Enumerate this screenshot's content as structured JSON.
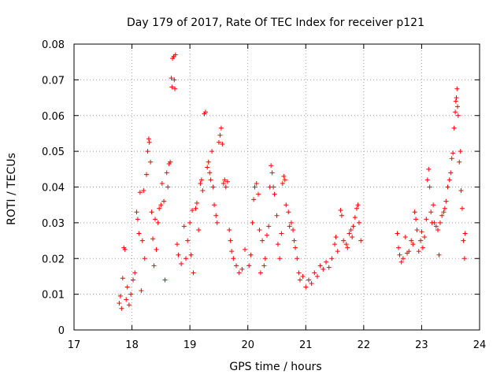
{
  "chart_data": {
    "type": "scatter",
    "title": "Day 179 of 2017, Rate Of TEC Index for receiver p121",
    "xlabel": "GPS time / hours",
    "ylabel": "ROTI / TECUs",
    "xlim": [
      17,
      24
    ],
    "ylim": [
      0,
      0.08
    ],
    "x_ticks": [
      "17",
      "18",
      "19",
      "20",
      "21",
      "22",
      "23",
      "24"
    ],
    "y_ticks": [
      "0",
      "0.01",
      "0.02",
      "0.03",
      "0.04",
      "0.05",
      "0.06",
      "0.07",
      "0.08"
    ],
    "grid": true,
    "marker": "+",
    "color": "#ff0000",
    "series": [
      {
        "points": [
          [
            17.78,
            0.0075
          ],
          [
            17.8,
            0.0095
          ],
          [
            17.82,
            0.006
          ],
          [
            17.84,
            0.0145
          ],
          [
            17.86,
            0.023
          ],
          [
            17.88,
            0.0225
          ],
          [
            17.9,
            0.0085
          ],
          [
            17.92,
            0.012
          ],
          [
            17.95,
            0.007
          ],
          [
            17.98,
            0.01
          ],
          [
            18.02,
            0.014
          ],
          [
            18.05,
            0.016
          ],
          [
            18.08,
            0.033
          ],
          [
            18.1,
            0.031
          ],
          [
            18.12,
            0.027
          ],
          [
            18.14,
            0.0385
          ],
          [
            18.16,
            0.011
          ],
          [
            18.18,
            0.025
          ],
          [
            18.2,
            0.039
          ],
          [
            18.22,
            0.02
          ],
          [
            18.25,
            0.0435
          ],
          [
            18.27,
            0.05
          ],
          [
            18.29,
            0.0535
          ],
          [
            18.3,
            0.0525
          ],
          [
            18.32,
            0.047
          ],
          [
            18.34,
            0.033
          ],
          [
            18.36,
            0.0255
          ],
          [
            18.38,
            0.018
          ],
          [
            18.4,
            0.031
          ],
          [
            18.42,
            0.0225
          ],
          [
            18.45,
            0.03
          ],
          [
            18.47,
            0.034
          ],
          [
            18.5,
            0.035
          ],
          [
            18.52,
            0.041
          ],
          [
            18.55,
            0.036
          ],
          [
            18.57,
            0.014
          ],
          [
            18.6,
            0.044
          ],
          [
            18.62,
            0.04
          ],
          [
            18.64,
            0.0465
          ],
          [
            18.66,
            0.047
          ],
          [
            18.68,
            0.0705
          ],
          [
            18.69,
            0.068
          ],
          [
            18.7,
            0.076
          ],
          [
            18.72,
            0.0765
          ],
          [
            18.73,
            0.07
          ],
          [
            18.74,
            0.0675
          ],
          [
            18.75,
            0.077
          ],
          [
            18.78,
            0.024
          ],
          [
            18.8,
            0.021
          ],
          [
            18.85,
            0.0185
          ],
          [
            18.9,
            0.029
          ],
          [
            18.93,
            0.02
          ],
          [
            18.96,
            0.025
          ],
          [
            19.0,
            0.03
          ],
          [
            19.02,
            0.021
          ],
          [
            19.04,
            0.0335
          ],
          [
            19.06,
            0.016
          ],
          [
            19.1,
            0.034
          ],
          [
            19.12,
            0.0355
          ],
          [
            19.15,
            0.028
          ],
          [
            19.18,
            0.041
          ],
          [
            19.2,
            0.042
          ],
          [
            19.22,
            0.039
          ],
          [
            19.25,
            0.0605
          ],
          [
            19.27,
            0.061
          ],
          [
            19.3,
            0.0455
          ],
          [
            19.32,
            0.047
          ],
          [
            19.34,
            0.044
          ],
          [
            19.36,
            0.042
          ],
          [
            19.38,
            0.05
          ],
          [
            19.4,
            0.04
          ],
          [
            19.42,
            0.035
          ],
          [
            19.45,
            0.032
          ],
          [
            19.47,
            0.03
          ],
          [
            19.5,
            0.0525
          ],
          [
            19.52,
            0.0545
          ],
          [
            19.54,
            0.0565
          ],
          [
            19.56,
            0.052
          ],
          [
            19.58,
            0.041
          ],
          [
            19.6,
            0.042
          ],
          [
            19.62,
            0.04
          ],
          [
            19.65,
            0.0415
          ],
          [
            19.68,
            0.028
          ],
          [
            19.7,
            0.025
          ],
          [
            19.72,
            0.022
          ],
          [
            19.75,
            0.02
          ],
          [
            19.8,
            0.018
          ],
          [
            19.85,
            0.016
          ],
          [
            19.9,
            0.017
          ],
          [
            19.95,
            0.0225
          ],
          [
            20.02,
            0.018
          ],
          [
            20.05,
            0.021
          ],
          [
            20.08,
            0.03
          ],
          [
            20.1,
            0.0365
          ],
          [
            20.12,
            0.04
          ],
          [
            20.15,
            0.041
          ],
          [
            20.18,
            0.038
          ],
          [
            20.2,
            0.028
          ],
          [
            20.22,
            0.016
          ],
          [
            20.25,
            0.025
          ],
          [
            20.28,
            0.018
          ],
          [
            20.3,
            0.02
          ],
          [
            20.33,
            0.0265
          ],
          [
            20.36,
            0.029
          ],
          [
            20.38,
            0.04
          ],
          [
            20.4,
            0.046
          ],
          [
            20.42,
            0.044
          ],
          [
            20.44,
            0.04
          ],
          [
            20.46,
            0.038
          ],
          [
            20.5,
            0.032
          ],
          [
            20.52,
            0.024
          ],
          [
            20.55,
            0.02
          ],
          [
            20.58,
            0.027
          ],
          [
            20.6,
            0.041
          ],
          [
            20.62,
            0.043
          ],
          [
            20.64,
            0.042
          ],
          [
            20.66,
            0.035
          ],
          [
            20.7,
            0.033
          ],
          [
            20.72,
            0.029
          ],
          [
            20.75,
            0.03
          ],
          [
            20.78,
            0.028
          ],
          [
            20.8,
            0.025
          ],
          [
            20.82,
            0.023
          ],
          [
            20.85,
            0.02
          ],
          [
            20.88,
            0.016
          ],
          [
            20.9,
            0.014
          ],
          [
            20.95,
            0.015
          ],
          [
            21.0,
            0.012
          ],
          [
            21.05,
            0.014
          ],
          [
            21.1,
            0.013
          ],
          [
            21.15,
            0.016
          ],
          [
            21.2,
            0.015
          ],
          [
            21.25,
            0.018
          ],
          [
            21.3,
            0.017
          ],
          [
            21.35,
            0.019
          ],
          [
            21.4,
            0.0175
          ],
          [
            21.45,
            0.02
          ],
          [
            21.5,
            0.024
          ],
          [
            21.52,
            0.026
          ],
          [
            21.55,
            0.022
          ],
          [
            21.6,
            0.0335
          ],
          [
            21.62,
            0.032
          ],
          [
            21.65,
            0.025
          ],
          [
            21.7,
            0.024
          ],
          [
            21.72,
            0.023
          ],
          [
            21.75,
            0.027
          ],
          [
            21.78,
            0.028
          ],
          [
            21.8,
            0.026
          ],
          [
            21.82,
            0.029
          ],
          [
            21.85,
            0.0315
          ],
          [
            21.88,
            0.034
          ],
          [
            21.9,
            0.035
          ],
          [
            21.92,
            0.03
          ],
          [
            21.95,
            0.025
          ],
          [
            22.58,
            0.027
          ],
          [
            22.6,
            0.023
          ],
          [
            22.62,
            0.021
          ],
          [
            22.65,
            0.019
          ],
          [
            22.68,
            0.02
          ],
          [
            22.72,
            0.026
          ],
          [
            22.75,
            0.0215
          ],
          [
            22.78,
            0.022
          ],
          [
            22.82,
            0.025
          ],
          [
            22.85,
            0.024
          ],
          [
            22.88,
            0.033
          ],
          [
            22.9,
            0.031
          ],
          [
            22.92,
            0.028
          ],
          [
            22.95,
            0.022
          ],
          [
            22.98,
            0.025
          ],
          [
            23.0,
            0.0275
          ],
          [
            23.02,
            0.023
          ],
          [
            23.05,
            0.026
          ],
          [
            23.08,
            0.031
          ],
          [
            23.1,
            0.042
          ],
          [
            23.12,
            0.045
          ],
          [
            23.14,
            0.04
          ],
          [
            23.16,
            0.033
          ],
          [
            23.18,
            0.03
          ],
          [
            23.2,
            0.035
          ],
          [
            23.22,
            0.03
          ],
          [
            23.25,
            0.029
          ],
          [
            23.28,
            0.028
          ],
          [
            23.3,
            0.021
          ],
          [
            23.32,
            0.03
          ],
          [
            23.35,
            0.032
          ],
          [
            23.38,
            0.033
          ],
          [
            23.4,
            0.034
          ],
          [
            23.42,
            0.036
          ],
          [
            23.45,
            0.04
          ],
          [
            23.48,
            0.042
          ],
          [
            23.5,
            0.044
          ],
          [
            23.52,
            0.048
          ],
          [
            23.54,
            0.0495
          ],
          [
            23.56,
            0.0565
          ],
          [
            23.58,
            0.061
          ],
          [
            23.59,
            0.064
          ],
          [
            23.6,
            0.065
          ],
          [
            23.61,
            0.0675
          ],
          [
            23.62,
            0.0625
          ],
          [
            23.63,
            0.06
          ],
          [
            23.65,
            0.047
          ],
          [
            23.67,
            0.05
          ],
          [
            23.68,
            0.039
          ],
          [
            23.7,
            0.034
          ],
          [
            23.72,
            0.025
          ],
          [
            23.74,
            0.02
          ],
          [
            23.75,
            0.027
          ]
        ]
      }
    ]
  }
}
